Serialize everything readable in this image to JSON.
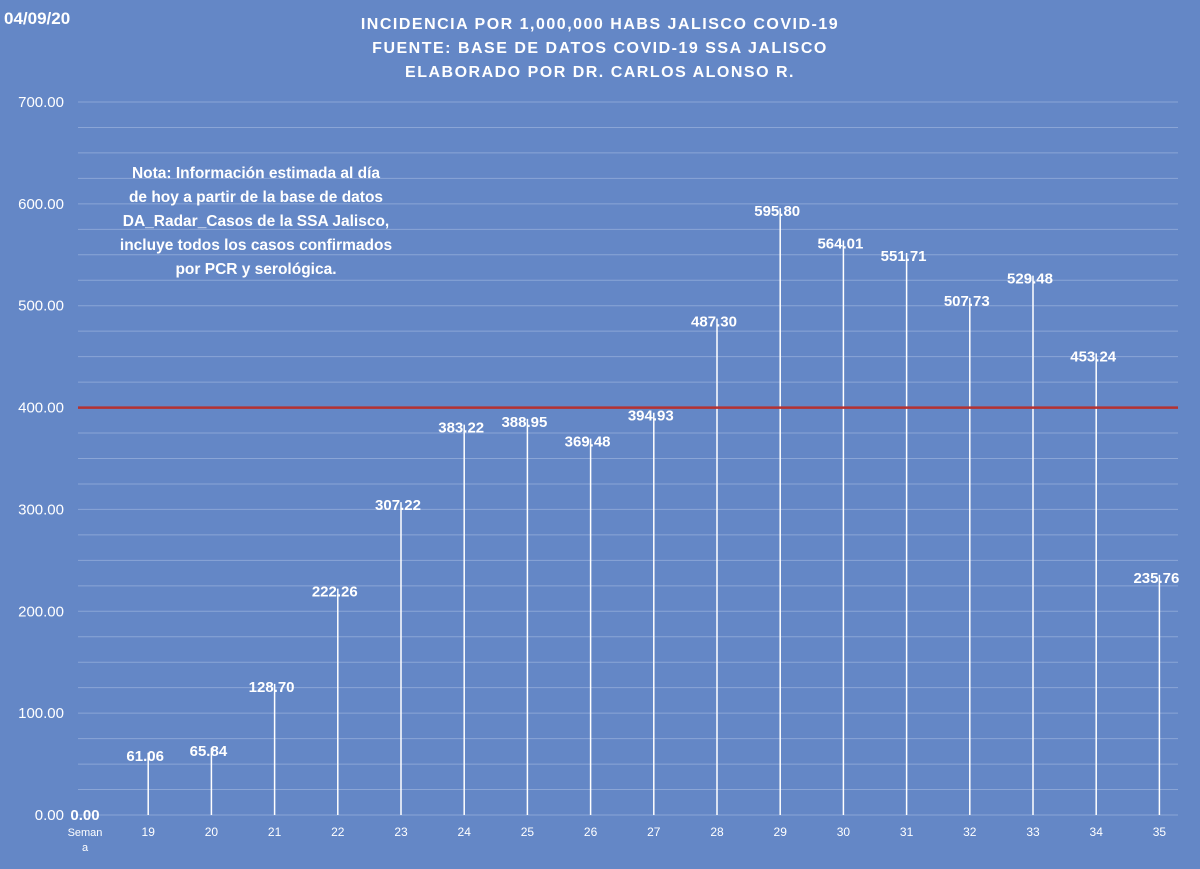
{
  "date_label": "04/09/20",
  "chart_data": {
    "type": "bar",
    "title": "INCIDENCIA POR 1,000,000 HABS JALISCO COVID-19",
    "subtitle": [
      "FUENTE: BASE DE DATOS COVID-19 SSA JALISCO",
      "ELABORADO POR DR. CARLOS ALONSO R."
    ],
    "xlabel": "",
    "ylabel": "",
    "ylim": [
      0,
      700
    ],
    "yticks": [
      "0.00",
      "100.00",
      "200.00",
      "300.00",
      "400.00",
      "500.00",
      "600.00",
      "700.00"
    ],
    "categories": [
      "Semana",
      "19",
      "20",
      "21",
      "22",
      "23",
      "24",
      "25",
      "26",
      "27",
      "28",
      "29",
      "30",
      "31",
      "32",
      "33",
      "34",
      "35"
    ],
    "values": [
      0.0,
      61.06,
      65.84,
      128.7,
      222.26,
      307.22,
      383.22,
      388.95,
      369.48,
      394.93,
      487.3,
      595.8,
      564.01,
      551.71,
      507.73,
      529.48,
      453.24,
      235.76
    ],
    "value_labels": [
      "0.00",
      "61.06",
      "65.84",
      "128.70",
      "222.26",
      "307.22",
      "383.22",
      "388.95",
      "369.48",
      "394.93",
      "487.30",
      "595.80",
      "564.01",
      "551.71",
      "507.73",
      "529.48",
      "453.24",
      "235.76"
    ],
    "reference_line": 400,
    "grid": true,
    "legend": "none",
    "colors": {
      "background": "#6487c6",
      "bar": "#ffffff",
      "reference_line": "#b43232",
      "text": "#ffffff",
      "grid": "#8aa5d6"
    }
  },
  "note": [
    "Nota: Información estimada al día",
    "de hoy a partir de la base de datos",
    "DA_Radar_Casos de la SSA Jalisco,",
    "incluye todos los casos confirmados",
    "por PCR y serológica."
  ]
}
